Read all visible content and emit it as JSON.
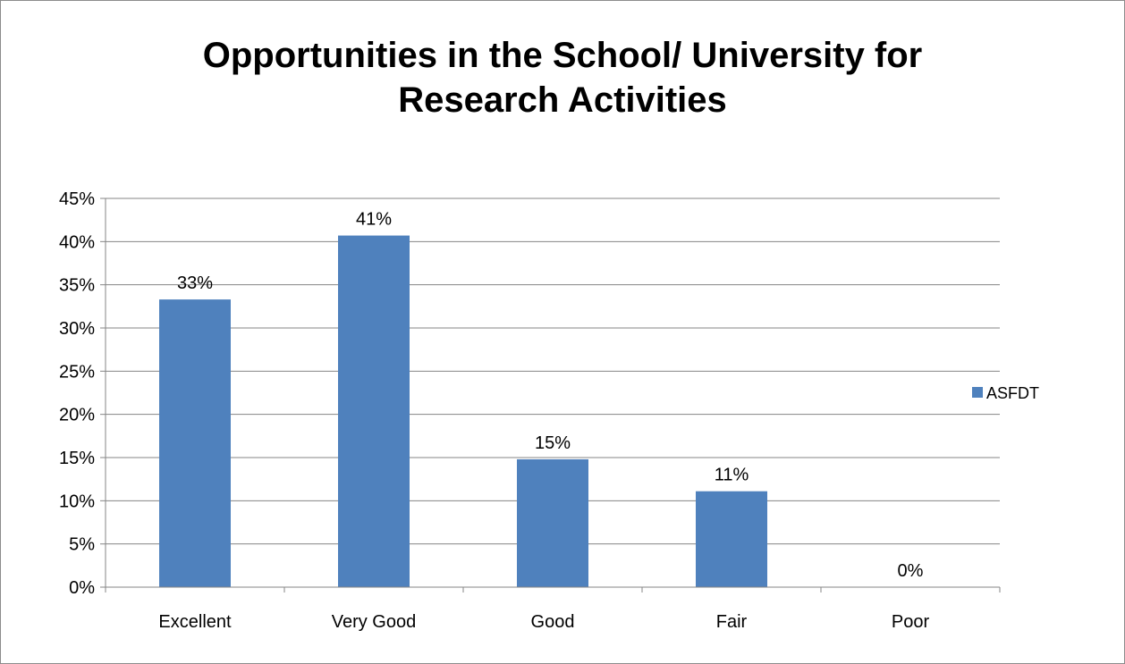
{
  "chart_data": {
    "type": "bar",
    "title": "Opportunities in the School/ University for\nResearch Activities",
    "categories": [
      "Excellent",
      "Very Good",
      "Good",
      "Fair",
      "Poor"
    ],
    "series": [
      {
        "name": "ASFDT",
        "values": [
          33.3,
          40.7,
          14.8,
          11.1,
          0
        ]
      }
    ],
    "data_labels": [
      "33%",
      "41%",
      "15%",
      "11%",
      "0%"
    ],
    "ylim": [
      0,
      45
    ],
    "y_ticks": [
      "0%",
      "5%",
      "10%",
      "15%",
      "20%",
      "25%",
      "30%",
      "35%",
      "40%",
      "45%"
    ],
    "grid": true,
    "legend_position": "right",
    "colors": {
      "bar": "#4f81bd",
      "grid": "#858585",
      "axis": "#858585"
    }
  }
}
